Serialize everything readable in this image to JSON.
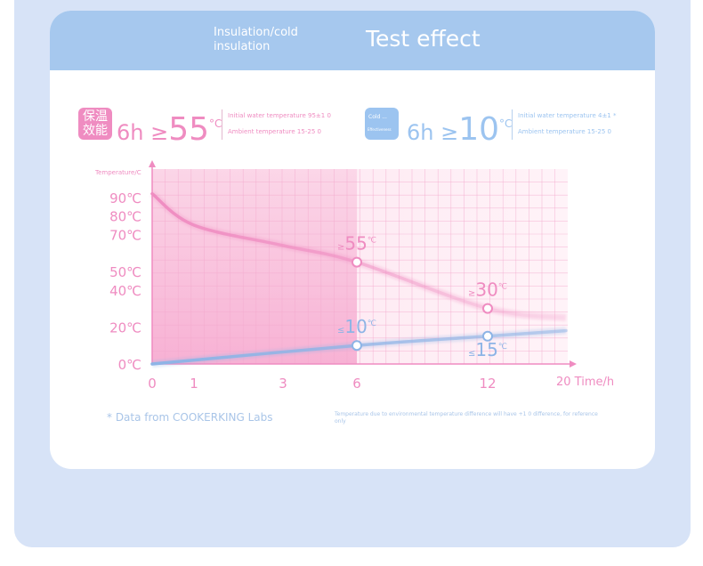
{
  "header": {
    "subtitle": "Insulation/cold insulation",
    "title": "Test effect"
  },
  "stats": {
    "warm": {
      "badge": "保温效能",
      "hours": "6h",
      "sign": "≥",
      "value": "55",
      "unit": "°C",
      "note1": "Initial water temperature 95±1 0",
      "note2": "Ambient temperature 15-25 0"
    },
    "cold": {
      "badge_line1": "Cold ...",
      "badge_line2": "Effectiveness",
      "hours": "6h",
      "sign": "≥",
      "value": "10",
      "unit": "°C",
      "note1": "Initial water temperature 4±1 *",
      "note2": "Ambient temperature 15-25 0"
    }
  },
  "chart_data": {
    "type": "line",
    "ylabel": "Temperature/C",
    "xlabel": "Time/h",
    "x_ticks": [
      "0",
      "1",
      "3",
      "6",
      "12",
      "20"
    ],
    "y_ticks": [
      "0℃",
      "20℃",
      "40℃",
      "50℃",
      "70℃",
      "80℃",
      "90℃"
    ],
    "series": [
      {
        "color": "#ef8cc1",
        "x": [
          0,
          1,
          3,
          6,
          12,
          16
        ],
        "y": [
          92,
          75,
          64,
          55,
          30,
          25
        ]
      },
      {
        "color": "#8db4e6",
        "x": [
          0,
          6,
          12,
          16
        ],
        "y": [
          0,
          10,
          15,
          18
        ]
      }
    ],
    "annotations": [
      {
        "sign": "≥",
        "value": "55",
        "unit": "℃",
        "x": 6,
        "y": 55
      },
      {
        "sign": "≥",
        "value": "30",
        "unit": "℃",
        "x": 12,
        "y": 30
      },
      {
        "sign": "≤",
        "value": "10",
        "unit": "℃",
        "x": 6,
        "y": 10
      },
      {
        "sign": "≤",
        "value": "15",
        "unit": "℃",
        "x": 12,
        "y": 15
      }
    ]
  },
  "footer": {
    "source": "* Data from COOKERKING Labs",
    "disclaimer": "Temperature due to environmental temperature difference will have +1 0 difference, for reference only"
  },
  "colors": {
    "pink": "#ef8cc1",
    "blue": "#9cc4f0",
    "header": "#a6c8ee",
    "panel": "#d7e3f7"
  }
}
